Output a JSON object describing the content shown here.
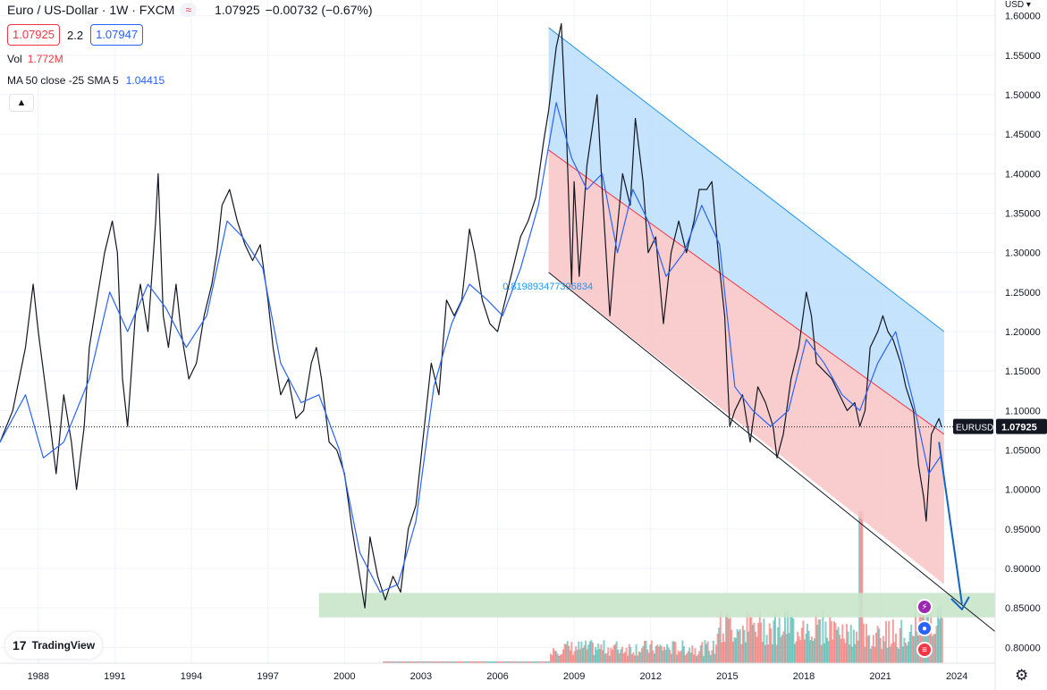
{
  "header": {
    "symbol": "Euro / US-Dollar · 1W · FXCM",
    "pill_icon": "wave-icon",
    "last": "1.07925",
    "change": "−0.00732 (−0.67%)",
    "bid": "1.07925",
    "spread": "2.2",
    "ask": "1.07947",
    "vol_label": "Vol",
    "vol_value": "1.772M",
    "ma_label": "MA 50 close -25 SMA 5",
    "ma_value": "1.04415",
    "collapse_icon": "chevron-up-icon"
  },
  "branding": {
    "logo_text": "TradingView"
  },
  "price_axis": {
    "currency": "USD",
    "ticks": [
      "1.60000",
      "1.55000",
      "1.50000",
      "1.45000",
      "1.40000",
      "1.35000",
      "1.30000",
      "1.25000",
      "1.20000",
      "1.15000",
      "1.10000",
      "1.05000",
      "1.00000",
      "0.95000",
      "0.90000",
      "0.85000",
      "0.80000"
    ],
    "symbol_tag": "EURUSD",
    "price_tag": "1.07925"
  },
  "time_axis": {
    "ticks": [
      "1988",
      "1991",
      "1994",
      "1997",
      "2000",
      "2003",
      "2006",
      "2009",
      "2012",
      "2015",
      "2018",
      "2021",
      "2024"
    ]
  },
  "annotation": {
    "channel_text": "0.819893477396834"
  },
  "colors": {
    "price_line": "#131722",
    "ma_line": "#2962ff",
    "channel_upper_fill": "#bbdefb",
    "channel_lower_fill": "#f8c4c4",
    "support_zone": "#c8e6c9",
    "vol_up": "#26a69a",
    "vol_down": "#ef5350"
  },
  "chart_data": {
    "type": "line",
    "title": "Euro / US-Dollar · 1W · FXCM",
    "ylim": [
      0.78,
      1.62
    ],
    "xlim": [
      1986.5,
      2025.5
    ],
    "grid": true,
    "series": [
      {
        "name": "Euro / US-Dollar",
        "points": [
          [
            1986.5,
            1.06
          ],
          [
            1987.0,
            1.1
          ],
          [
            1987.5,
            1.18
          ],
          [
            1987.8,
            1.26
          ],
          [
            1988.0,
            1.2
          ],
          [
            1988.4,
            1.1
          ],
          [
            1988.7,
            1.02
          ],
          [
            1989.0,
            1.12
          ],
          [
            1989.3,
            1.06
          ],
          [
            1989.5,
            1.0
          ],
          [
            1989.8,
            1.08
          ],
          [
            1990.0,
            1.18
          ],
          [
            1990.3,
            1.24
          ],
          [
            1990.6,
            1.3
          ],
          [
            1990.9,
            1.34
          ],
          [
            1991.1,
            1.3
          ],
          [
            1991.3,
            1.14
          ],
          [
            1991.5,
            1.08
          ],
          [
            1991.8,
            1.22
          ],
          [
            1992.0,
            1.26
          ],
          [
            1992.3,
            1.2
          ],
          [
            1992.6,
            1.34
          ],
          [
            1992.7,
            1.4
          ],
          [
            1992.9,
            1.22
          ],
          [
            1993.1,
            1.18
          ],
          [
            1993.4,
            1.26
          ],
          [
            1993.6,
            1.2
          ],
          [
            1993.9,
            1.14
          ],
          [
            1994.2,
            1.16
          ],
          [
            1994.5,
            1.22
          ],
          [
            1994.8,
            1.26
          ],
          [
            1995.0,
            1.3
          ],
          [
            1995.2,
            1.36
          ],
          [
            1995.5,
            1.38
          ],
          [
            1995.8,
            1.34
          ],
          [
            1996.1,
            1.31
          ],
          [
            1996.4,
            1.29
          ],
          [
            1996.7,
            1.31
          ],
          [
            1997.0,
            1.24
          ],
          [
            1997.2,
            1.18
          ],
          [
            1997.5,
            1.12
          ],
          [
            1997.8,
            1.14
          ],
          [
            1998.1,
            1.09
          ],
          [
            1998.4,
            1.1
          ],
          [
            1998.7,
            1.16
          ],
          [
            1998.9,
            1.18
          ],
          [
            1999.1,
            1.14
          ],
          [
            1999.4,
            1.06
          ],
          [
            1999.7,
            1.05
          ],
          [
            2000.0,
            1.02
          ],
          [
            2000.3,
            0.95
          ],
          [
            2000.6,
            0.89
          ],
          [
            2000.8,
            0.85
          ],
          [
            2001.0,
            0.94
          ],
          [
            2001.3,
            0.89
          ],
          [
            2001.6,
            0.86
          ],
          [
            2001.9,
            0.89
          ],
          [
            2002.2,
            0.87
          ],
          [
            2002.5,
            0.95
          ],
          [
            2002.8,
            0.98
          ],
          [
            2003.1,
            1.07
          ],
          [
            2003.4,
            1.16
          ],
          [
            2003.7,
            1.12
          ],
          [
            2004.0,
            1.24
          ],
          [
            2004.3,
            1.22
          ],
          [
            2004.6,
            1.24
          ],
          [
            2004.9,
            1.33
          ],
          [
            2005.1,
            1.3
          ],
          [
            2005.4,
            1.24
          ],
          [
            2005.7,
            1.21
          ],
          [
            2006.0,
            1.2
          ],
          [
            2006.3,
            1.24
          ],
          [
            2006.6,
            1.28
          ],
          [
            2006.9,
            1.32
          ],
          [
            2007.2,
            1.34
          ],
          [
            2007.5,
            1.37
          ],
          [
            2007.8,
            1.44
          ],
          [
            2008.0,
            1.48
          ],
          [
            2008.3,
            1.56
          ],
          [
            2008.5,
            1.59
          ],
          [
            2008.7,
            1.45
          ],
          [
            2008.9,
            1.26
          ],
          [
            2009.0,
            1.39
          ],
          [
            2009.2,
            1.27
          ],
          [
            2009.5,
            1.41
          ],
          [
            2009.9,
            1.5
          ],
          [
            2010.1,
            1.38
          ],
          [
            2010.4,
            1.22
          ],
          [
            2010.6,
            1.3
          ],
          [
            2010.9,
            1.4
          ],
          [
            2011.2,
            1.36
          ],
          [
            2011.4,
            1.47
          ],
          [
            2011.7,
            1.39
          ],
          [
            2011.9,
            1.3
          ],
          [
            2012.2,
            1.32
          ],
          [
            2012.5,
            1.21
          ],
          [
            2012.8,
            1.3
          ],
          [
            2013.1,
            1.34
          ],
          [
            2013.4,
            1.3
          ],
          [
            2013.7,
            1.34
          ],
          [
            2013.9,
            1.38
          ],
          [
            2014.2,
            1.38
          ],
          [
            2014.4,
            1.39
          ],
          [
            2014.7,
            1.28
          ],
          [
            2014.9,
            1.22
          ],
          [
            2015.1,
            1.08
          ],
          [
            2015.3,
            1.1
          ],
          [
            2015.6,
            1.12
          ],
          [
            2015.9,
            1.06
          ],
          [
            2016.2,
            1.13
          ],
          [
            2016.5,
            1.11
          ],
          [
            2016.8,
            1.08
          ],
          [
            2016.95,
            1.04
          ],
          [
            2017.2,
            1.07
          ],
          [
            2017.5,
            1.14
          ],
          [
            2017.8,
            1.18
          ],
          [
            2018.1,
            1.25
          ],
          [
            2018.3,
            1.22
          ],
          [
            2018.5,
            1.16
          ],
          [
            2018.8,
            1.15
          ],
          [
            2019.1,
            1.14
          ],
          [
            2019.4,
            1.12
          ],
          [
            2019.7,
            1.1
          ],
          [
            2020.0,
            1.11
          ],
          [
            2020.2,
            1.08
          ],
          [
            2020.4,
            1.1
          ],
          [
            2020.6,
            1.18
          ],
          [
            2020.9,
            1.2
          ],
          [
            2021.1,
            1.22
          ],
          [
            2021.3,
            1.2
          ],
          [
            2021.5,
            1.19
          ],
          [
            2021.8,
            1.16
          ],
          [
            2022.0,
            1.13
          ],
          [
            2022.3,
            1.1
          ],
          [
            2022.5,
            1.03
          ],
          [
            2022.7,
            0.99
          ],
          [
            2022.8,
            0.96
          ],
          [
            2023.0,
            1.07
          ],
          [
            2023.3,
            1.09
          ],
          [
            2023.4,
            1.07925
          ]
        ]
      },
      {
        "name": "MA 50 close -25 SMA 5",
        "points": [
          [
            1986.5,
            1.06
          ],
          [
            1987.5,
            1.12
          ],
          [
            1988.2,
            1.04
          ],
          [
            1989.0,
            1.06
          ],
          [
            1990.0,
            1.14
          ],
          [
            1990.8,
            1.25
          ],
          [
            1991.5,
            1.2
          ],
          [
            1992.3,
            1.26
          ],
          [
            1993.0,
            1.23
          ],
          [
            1993.8,
            1.18
          ],
          [
            1994.6,
            1.22
          ],
          [
            1995.4,
            1.34
          ],
          [
            1996.0,
            1.32
          ],
          [
            1996.8,
            1.28
          ],
          [
            1997.5,
            1.16
          ],
          [
            1998.3,
            1.11
          ],
          [
            1999.0,
            1.12
          ],
          [
            1999.8,
            1.05
          ],
          [
            2000.6,
            0.92
          ],
          [
            2001.4,
            0.87
          ],
          [
            2002.1,
            0.88
          ],
          [
            2002.8,
            0.96
          ],
          [
            2003.5,
            1.13
          ],
          [
            2004.2,
            1.21
          ],
          [
            2004.9,
            1.26
          ],
          [
            2005.6,
            1.24
          ],
          [
            2006.2,
            1.22
          ],
          [
            2006.9,
            1.28
          ],
          [
            2007.6,
            1.36
          ],
          [
            2008.3,
            1.49
          ],
          [
            2008.9,
            1.42
          ],
          [
            2009.5,
            1.38
          ],
          [
            2010.1,
            1.4
          ],
          [
            2010.7,
            1.3
          ],
          [
            2011.3,
            1.38
          ],
          [
            2011.9,
            1.34
          ],
          [
            2012.6,
            1.27
          ],
          [
            2013.3,
            1.3
          ],
          [
            2014.0,
            1.36
          ],
          [
            2014.7,
            1.31
          ],
          [
            2015.3,
            1.13
          ],
          [
            2016.0,
            1.1
          ],
          [
            2016.7,
            1.08
          ],
          [
            2017.4,
            1.1
          ],
          [
            2018.1,
            1.19
          ],
          [
            2018.8,
            1.16
          ],
          [
            2019.5,
            1.12
          ],
          [
            2020.2,
            1.1
          ],
          [
            2020.9,
            1.16
          ],
          [
            2021.6,
            1.2
          ],
          [
            2022.3,
            1.11
          ],
          [
            2022.9,
            1.02
          ],
          [
            2023.4,
            1.044
          ]
        ]
      }
    ],
    "overlays": {
      "channel_upper_top": [
        [
          2008.0,
          1.585
        ],
        [
          2023.5,
          1.2
        ]
      ],
      "channel_mid": [
        [
          2008.0,
          1.43
        ],
        [
          2023.5,
          1.07
        ]
      ],
      "channel_bottom": [
        [
          2008.0,
          1.275
        ],
        [
          2025.5,
          0.82
        ]
      ],
      "channel_fill_bottom_right": [
        2023.5,
        0.88
      ],
      "support_zone": {
        "x": [
          1999.0,
          2025.5
        ],
        "y": [
          0.838,
          0.869
        ]
      },
      "projection_arrow": [
        [
          2023.3,
          1.06
        ],
        [
          2024.2,
          0.855
        ]
      ],
      "current_price": 1.07925
    }
  }
}
